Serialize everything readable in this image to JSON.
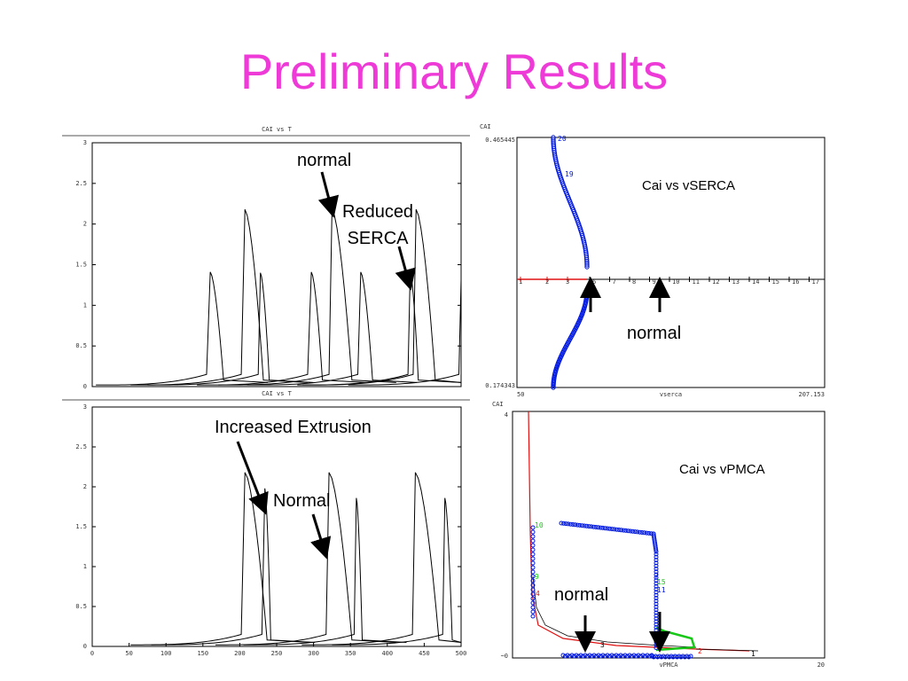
{
  "slide": {
    "title": "Preliminary Results",
    "title_color": "#ee3ad6"
  },
  "annotations": {
    "tl_normal": "normal",
    "tl_reduced": "Reduced\nSERCA",
    "tr_label": "Cai vs vSERCA",
    "tr_normal": "normal",
    "bl_increased": "Increased Extrusion",
    "bl_normal": "Normal",
    "br_label": "Cai vs vPMCA",
    "br_normal": "normal"
  },
  "chart_data": [
    {
      "id": "top-left",
      "type": "line",
      "title": "CAI vs T",
      "ylim": [
        0,
        3
      ],
      "xlim": [
        0,
        500
      ],
      "yticks": [
        "0",
        "0.5",
        "1",
        "1.5",
        "2",
        "2.5",
        "3"
      ],
      "series": [
        {
          "spikes": [
            {
              "rise": 155,
              "peak": 160,
              "fall": 178,
              "top": 1.41
            },
            {
              "rise": 202,
              "peak": 207,
              "fall": 232,
              "top": 2.18
            },
            {
              "rise": 225,
              "peak": 228,
              "fall": 240,
              "top": 1.4
            },
            {
              "rise": 292,
              "peak": 297,
              "fall": 312,
              "top": 1.41
            },
            {
              "rise": 321,
              "peak": 325,
              "fall": 352,
              "top": 2.18
            },
            {
              "rise": 360,
              "peak": 364,
              "fall": 380,
              "top": 1.41
            },
            {
              "rise": 435,
              "peak": 439,
              "fall": 465,
              "top": 2.18
            },
            {
              "rise": 428,
              "peak": 431,
              "fall": 442,
              "top": 1.41
            },
            {
              "rise": 497,
              "peak": 500,
              "fall": 500,
              "top": 1.31
            }
          ]
        }
      ]
    },
    {
      "id": "bottom-left",
      "type": "line",
      "title": "CAI vs T",
      "ylim": [
        0,
        3
      ],
      "xlim": [
        0,
        500
      ],
      "yticks": [
        "0",
        "0.5",
        "1",
        "1.5",
        "2",
        "2.5",
        "3"
      ],
      "xticks": [
        "0",
        "50",
        "100",
        "150",
        "200",
        "250",
        "300",
        "350",
        "400",
        "450",
        "500"
      ],
      "series": [
        {
          "spikes": [
            {
              "rise": 202,
              "peak": 207,
              "fall": 237,
              "top": 2.18
            },
            {
              "rise": 230,
              "peak": 234,
              "fall": 242,
              "top": 1.98
            },
            {
              "rise": 317,
              "peak": 321,
              "fall": 352,
              "top": 2.18
            },
            {
              "rise": 355,
              "peak": 358,
              "fall": 366,
              "top": 1.86
            },
            {
              "rise": 434,
              "peak": 438,
              "fall": 470,
              "top": 2.18
            },
            {
              "rise": 475,
              "peak": 478,
              "fall": 488,
              "top": 1.86
            }
          ]
        }
      ]
    },
    {
      "id": "top-right",
      "type": "scatter",
      "ylabel": "CAI",
      "xlabel": "vserca",
      "xmin_label": "50",
      "xmax_label": "207.153",
      "ymax_label": "0.465445",
      "ymin_label": "0.174343",
      "axis_labels_red": [
        "1",
        "2",
        "3"
      ],
      "axis_labels_black": [
        "6",
        "7",
        "8",
        "9",
        "10",
        "11",
        "12",
        "13",
        "14",
        "15",
        "16",
        "17"
      ],
      "point_labels": [
        "20",
        "19"
      ],
      "colors": {
        "curve": "#0018e0",
        "axis": "#e01010"
      }
    },
    {
      "id": "bottom-right",
      "type": "line",
      "ylabel": "CAI",
      "xlabel": "vPMCA",
      "ymax_label": "4",
      "ymin_label": "~0",
      "xmax_label": "20",
      "point_labels": [
        "10",
        "9",
        "4",
        "7",
        "15",
        "11",
        "2",
        "1",
        "3"
      ],
      "colors": {
        "red": "#e01010",
        "green": "#18c818",
        "blue": "#0018e0",
        "black": "#000000"
      }
    }
  ]
}
